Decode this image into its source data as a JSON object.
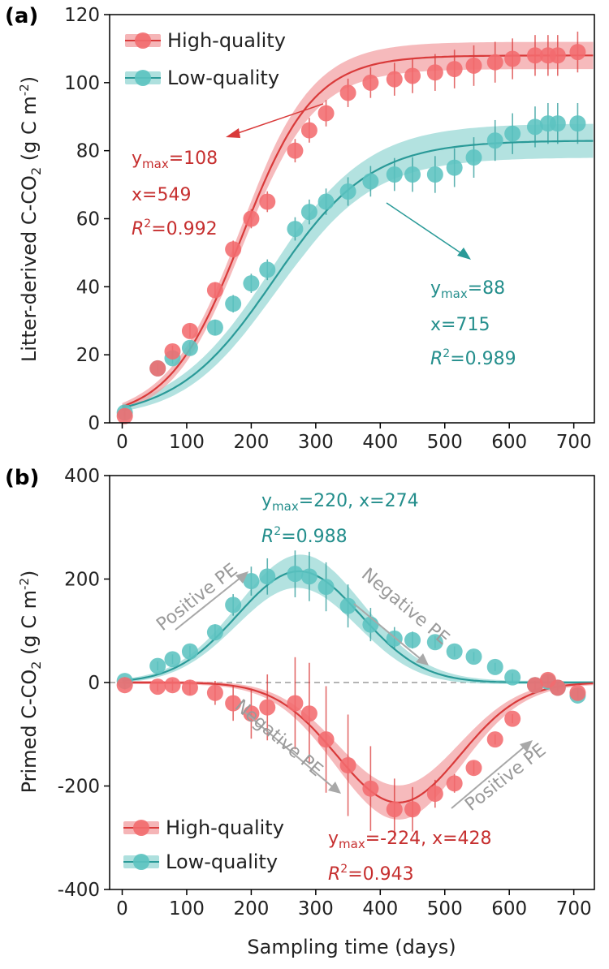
{
  "colors": {
    "high": "#d93a3a",
    "high_marker": "#f26b6e",
    "high_band": "#f3a3a5",
    "low": "#2a9a98",
    "low_marker": "#5cc3c0",
    "low_band": "#9ad8d6",
    "pe_arrow": "#a8a8a8"
  },
  "figure": {
    "xlabel": "Sampling time (days)"
  },
  "chart_data": [
    {
      "panel": "(a)",
      "type": "scatter",
      "ylabel_main": "Litter-derived C-CO",
      "ylabel_sub": "2",
      "ylabel_unit": " (g C m",
      "ylabel_sup": "-2",
      "ylabel_close": ")",
      "xlim": [
        0,
        730
      ],
      "ylim": [
        0,
        120
      ],
      "xticks": [
        0,
        100,
        200,
        300,
        400,
        500,
        600,
        700
      ],
      "yticks": [
        0,
        20,
        40,
        60,
        80,
        100,
        120
      ],
      "legend": {
        "position": "top-left",
        "entries": [
          "High-quality",
          "Low-quality"
        ]
      },
      "series": [
        {
          "name": "High-quality",
          "x": [
            4,
            55,
            78,
            105,
            144,
            172,
            200,
            225,
            268,
            290,
            316,
            350,
            385,
            422,
            450,
            485,
            515,
            545,
            578,
            605,
            640,
            660,
            675,
            706
          ],
          "y": [
            2,
            16,
            21,
            27,
            39,
            51,
            60,
            65,
            80,
            86,
            91,
            97,
            100,
            101,
            102,
            103,
            104,
            105,
            106,
            107,
            108,
            108,
            108,
            109
          ],
          "fit": {
            "ymax": 108,
            "x": 549,
            "r2": 0.992
          }
        },
        {
          "name": "Low-quality",
          "x": [
            4,
            55,
            78,
            105,
            144,
            172,
            200,
            225,
            268,
            290,
            316,
            350,
            385,
            422,
            450,
            485,
            515,
            545,
            578,
            605,
            640,
            660,
            675,
            706
          ],
          "y": [
            3,
            16,
            19,
            22,
            28,
            35,
            41,
            45,
            57,
            62,
            65,
            68,
            71,
            73,
            73,
            73,
            75,
            78,
            83,
            85,
            87,
            88,
            88,
            88
          ],
          "fit": {
            "ymax": 88,
            "x": 715,
            "r2": 0.989
          }
        }
      ],
      "annotations": {
        "high": {
          "ymax_label": "=108",
          "x_label": "x=549",
          "r2_label": "=0.992"
        },
        "low": {
          "ymax_label": "=88",
          "x_label": "x=715",
          "r2_label": "=0.989"
        }
      }
    },
    {
      "panel": "(b)",
      "type": "scatter",
      "ylabel_main": "Primed C-CO",
      "ylabel_sub": "2",
      "ylabel_unit": " (g C m",
      "ylabel_sup": "-2",
      "ylabel_close": ")",
      "xlim": [
        0,
        730
      ],
      "ylim": [
        -400,
        400
      ],
      "xticks": [
        0,
        100,
        200,
        300,
        400,
        500,
        600,
        700
      ],
      "yticks": [
        -400,
        -200,
        0,
        200,
        400
      ],
      "legend": {
        "position": "bottom-left",
        "entries": [
          "High-quality",
          "Low-quality"
        ]
      },
      "series": [
        {
          "name": "Low-quality",
          "x": [
            4,
            55,
            78,
            105,
            144,
            172,
            200,
            225,
            268,
            290,
            316,
            350,
            385,
            422,
            450,
            485,
            515,
            545,
            578,
            605,
            640,
            660,
            675,
            706
          ],
          "y": [
            3,
            32,
            45,
            60,
            97,
            150,
            196,
            205,
            210,
            205,
            185,
            148,
            112,
            85,
            82,
            78,
            60,
            50,
            30,
            10,
            -5,
            2,
            -10,
            -25
          ],
          "fit": {
            "ymax": 220,
            "x": 274,
            "r2": 0.988
          }
        },
        {
          "name": "High-quality",
          "x": [
            4,
            55,
            78,
            105,
            144,
            172,
            200,
            225,
            268,
            290,
            316,
            350,
            385,
            422,
            450,
            485,
            515,
            545,
            578,
            605,
            640,
            660,
            675,
            706
          ],
          "y": [
            -5,
            -8,
            -5,
            -10,
            -20,
            -40,
            -60,
            -48,
            -40,
            -60,
            -110,
            -160,
            -205,
            -245,
            -245,
            -215,
            -195,
            -165,
            -110,
            -70,
            -5,
            5,
            -10,
            -20
          ],
          "fit": {
            "ymax": -224,
            "x": 428,
            "r2": 0.943
          }
        }
      ],
      "annotations": {
        "low": {
          "line1": "=220, x=274",
          "r2_label": "=0.988"
        },
        "high": {
          "line1": "=-224, x=428",
          "r2_label": "=0.943"
        },
        "positive_pe": "Positive PE",
        "negative_pe": "Negative PE"
      }
    }
  ],
  "labels": {
    "y": "y",
    "max": "max",
    "R": "R",
    "sq": "2"
  }
}
